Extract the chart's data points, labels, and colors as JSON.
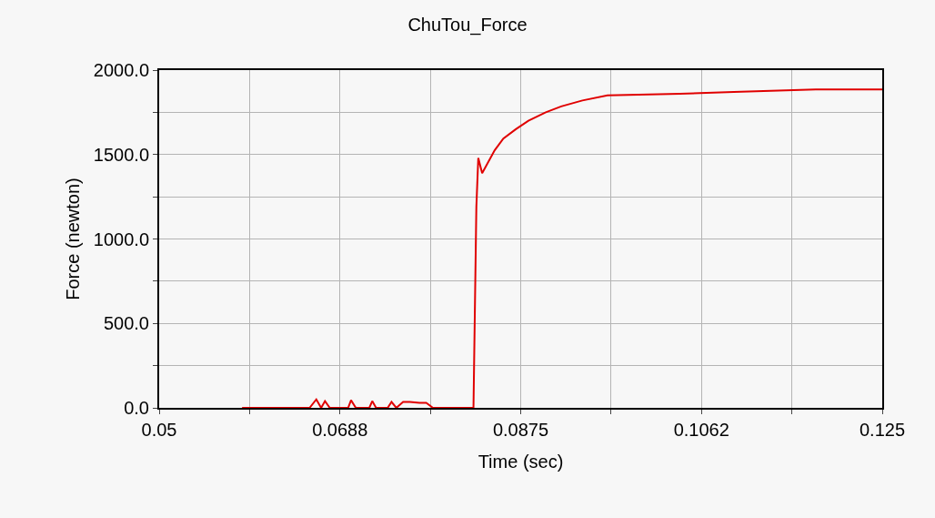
{
  "chart_data": {
    "type": "line",
    "title": "ChuTou_Force",
    "xlabel": "Time (sec)",
    "ylabel": "Force (newton)",
    "x": [
      0.0586,
      0.0656,
      0.0663,
      0.0668,
      0.0672,
      0.0677,
      0.0696,
      0.0699,
      0.0704,
      0.0718,
      0.0721,
      0.0725,
      0.0737,
      0.0741,
      0.0746,
      0.0753,
      0.076,
      0.077,
      0.0777,
      0.0784,
      0.0826,
      0.0829,
      0.0831,
      0.0835,
      0.0848,
      0.0857,
      0.087,
      0.0883,
      0.0901,
      0.0917,
      0.0939,
      0.0965,
      0.104,
      0.1096,
      0.1181,
      0.125
    ],
    "series": [
      {
        "color": "#e00000",
        "values": [
          0,
          0,
          50,
          0,
          40,
          0,
          0,
          45,
          0,
          0,
          40,
          0,
          0,
          35,
          0,
          35,
          35,
          30,
          30,
          0,
          0,
          1190,
          1480,
          1390,
          1525,
          1595,
          1650,
          1700,
          1750,
          1785,
          1820,
          1850,
          1860,
          1870,
          1885,
          1885
        ]
      }
    ],
    "xlim": [
      0.05,
      0.125
    ],
    "xticks": [
      0.05,
      {
        "value": 0.059375,
        "label": null
      },
      {
        "value": 0.06875,
        "label": "0.0688"
      },
      {
        "value": 0.078125,
        "label": null
      },
      {
        "value": 0.0875,
        "label": "0.0875"
      },
      {
        "value": 0.096875,
        "label": null
      },
      {
        "value": 0.10625,
        "label": "0.1062"
      },
      {
        "value": 0.115625,
        "label": null
      },
      0.125
    ],
    "ylim": [
      0,
      2000
    ],
    "yticks": [
      {
        "value": 0,
        "label": "0.0"
      },
      {
        "value": 250,
        "label": null
      },
      {
        "value": 500,
        "label": "500.0"
      },
      {
        "value": 750,
        "label": null
      },
      {
        "value": 1000,
        "label": "1000.0"
      },
      {
        "value": 1250,
        "label": null
      },
      {
        "value": 1500,
        "label": "1500.0"
      },
      {
        "value": 1750,
        "label": null
      },
      {
        "value": 2000,
        "label": "2000.0"
      }
    ],
    "grid": true,
    "line_style": "solid"
  }
}
